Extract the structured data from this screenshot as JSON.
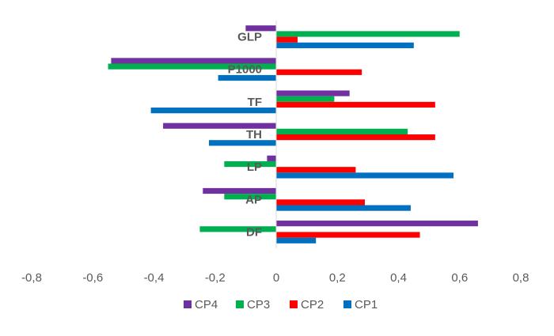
{
  "chart_data": {
    "type": "bar",
    "orientation": "horizontal",
    "categories": [
      "GLP",
      "P1000",
      "TF",
      "TH",
      "LP",
      "AP",
      "DF"
    ],
    "series": [
      {
        "name": "CP4",
        "color": "#7030A0",
        "values": [
          -0.1,
          -0.54,
          0.24,
          -0.37,
          -0.03,
          -0.24,
          0.66
        ]
      },
      {
        "name": "CP3",
        "color": "#00B050",
        "values": [
          0.6,
          -0.55,
          0.19,
          0.43,
          -0.17,
          -0.17,
          -0.25
        ]
      },
      {
        "name": "CP2",
        "color": "#FF0000",
        "values": [
          0.07,
          0.28,
          0.52,
          0.52,
          0.26,
          0.29,
          0.47
        ]
      },
      {
        "name": "CP1",
        "color": "#0070C0",
        "values": [
          0.45,
          -0.19,
          -0.41,
          -0.22,
          0.58,
          0.44,
          0.13
        ]
      }
    ],
    "xticks": [
      "-0,8",
      "-0,6",
      "-0,4",
      "-0,2",
      "0",
      "0,2",
      "0,4",
      "0,6",
      "0,8"
    ],
    "xlim": [
      -0.8,
      0.8
    ],
    "legend_order": [
      "CP4",
      "CP3",
      "CP2",
      "CP1"
    ],
    "legend_position": "bottom",
    "grid": false
  }
}
